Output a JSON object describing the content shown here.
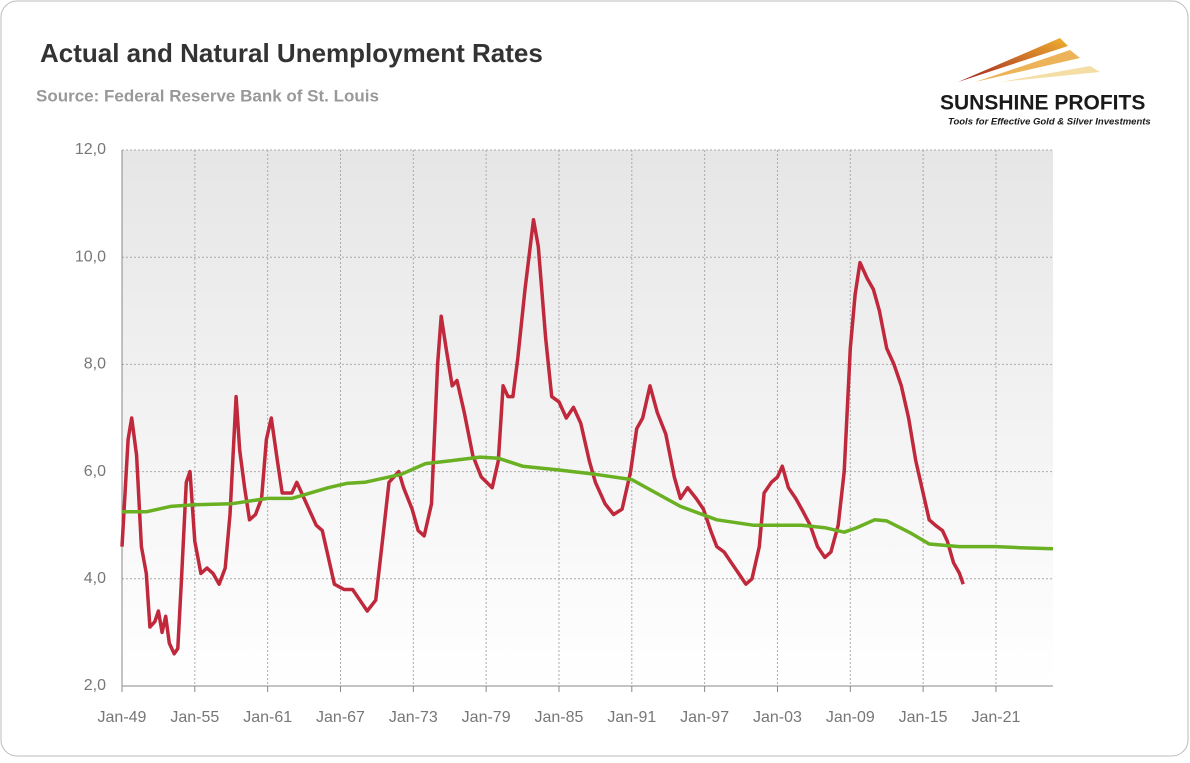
{
  "chart_data": {
    "type": "line",
    "title": "Actual and Natural Unemployment Rates",
    "subtitle": "Source: Federal Reserve Bank of St. Louis",
    "logo": {
      "name": "SUNSHINE PROFITS",
      "tagline": "Tools for Effective Gold & Silver Investments"
    },
    "xlim": [
      1949,
      2025.7
    ],
    "xticks": [
      {
        "value": 1949,
        "label": "Jan-49"
      },
      {
        "value": 1955,
        "label": "Jan-55"
      },
      {
        "value": 1961,
        "label": "Jan-61"
      },
      {
        "value": 1967,
        "label": "Jan-67"
      },
      {
        "value": 1973,
        "label": "Jan-73"
      },
      {
        "value": 1979,
        "label": "Jan-79"
      },
      {
        "value": 1985,
        "label": "Jan-85"
      },
      {
        "value": 1991,
        "label": "Jan-91"
      },
      {
        "value": 1997,
        "label": "Jan-97"
      },
      {
        "value": 2003,
        "label": "Jan-03"
      },
      {
        "value": 2009,
        "label": "Jan-09"
      },
      {
        "value": 2015,
        "label": "Jan-15"
      },
      {
        "value": 2021,
        "label": "Jan-21"
      }
    ],
    "ylim": [
      2,
      12
    ],
    "yticks": [
      {
        "value": 2,
        "label": "2,0"
      },
      {
        "value": 4,
        "label": "4,0"
      },
      {
        "value": 6,
        "label": "6,0"
      },
      {
        "value": 8,
        "label": "8,0"
      },
      {
        "value": 10,
        "label": "10,0"
      },
      {
        "value": 12,
        "label": "12,0"
      }
    ],
    "grid": true,
    "series": [
      {
        "color": "#c0283c",
        "x": [
          1949.0,
          1949.5,
          1949.8,
          1950.2,
          1950.6,
          1951.0,
          1951.3,
          1951.7,
          1952.0,
          1952.3,
          1952.6,
          1952.9,
          1953.3,
          1953.6,
          1953.9,
          1954.3,
          1954.6,
          1955.0,
          1955.5,
          1956.0,
          1956.5,
          1957.0,
          1957.5,
          1957.9,
          1958.4,
          1958.7,
          1959.1,
          1959.5,
          1960.0,
          1960.5,
          1960.9,
          1961.3,
          1961.8,
          1962.2,
          1963.0,
          1963.4,
          1964.0,
          1965.0,
          1965.5,
          1966.5,
          1967.3,
          1968.0,
          1968.6,
          1969.2,
          1969.9,
          1970.5,
          1971.0,
          1971.8,
          1972.2,
          1972.9,
          1973.4,
          1973.9,
          1974.5,
          1975.0,
          1975.3,
          1975.7,
          1976.2,
          1976.6,
          1977.2,
          1977.9,
          1978.6,
          1979.5,
          1980.0,
          1980.4,
          1980.8,
          1981.2,
          1981.6,
          1982.2,
          1982.9,
          1983.3,
          1983.9,
          1984.4,
          1985.0,
          1985.6,
          1986.2,
          1986.8,
          1987.5,
          1988.0,
          1988.8,
          1989.5,
          1990.2,
          1990.9,
          1991.4,
          1991.9,
          1992.5,
          1993.1,
          1993.8,
          1994.5,
          1995.0,
          1995.6,
          1996.3,
          1996.9,
          1997.5,
          1998.0,
          1998.6,
          1999.2,
          1999.8,
          2000.4,
          2000.9,
          2001.5,
          2001.9,
          2002.5,
          2003.0,
          2003.4,
          2003.9,
          2004.5,
          2005.0,
          2005.7,
          2006.3,
          2006.9,
          2007.4,
          2008.0,
          2008.5,
          2009.0,
          2009.4,
          2009.8,
          2010.4,
          2010.9,
          2011.4,
          2012.0,
          2012.6,
          2013.2,
          2013.8,
          2014.4,
          2014.9,
          2015.5,
          2016.0,
          2016.6,
          2017.0,
          2017.5,
          2018.0,
          2018.3
        ],
        "values": [
          4.6,
          6.6,
          7.0,
          6.3,
          4.6,
          4.1,
          3.1,
          3.2,
          3.4,
          3.0,
          3.3,
          2.8,
          2.6,
          2.7,
          4.0,
          5.8,
          6.0,
          4.7,
          4.1,
          4.2,
          4.1,
          3.9,
          4.2,
          5.2,
          7.4,
          6.4,
          5.7,
          5.1,
          5.2,
          5.5,
          6.6,
          7.0,
          6.2,
          5.6,
          5.6,
          5.8,
          5.5,
          5.0,
          4.9,
          3.9,
          3.8,
          3.8,
          3.6,
          3.4,
          3.6,
          4.8,
          5.8,
          6.0,
          5.7,
          5.3,
          4.9,
          4.8,
          5.4,
          8.0,
          8.9,
          8.3,
          7.6,
          7.7,
          7.1,
          6.3,
          5.9,
          5.7,
          6.2,
          7.6,
          7.4,
          7.4,
          8.1,
          9.4,
          10.7,
          10.2,
          8.5,
          7.4,
          7.3,
          7.0,
          7.2,
          6.9,
          6.2,
          5.8,
          5.4,
          5.2,
          5.3,
          6.0,
          6.8,
          7.0,
          7.6,
          7.1,
          6.7,
          5.9,
          5.5,
          5.7,
          5.5,
          5.3,
          4.9,
          4.6,
          4.5,
          4.3,
          4.1,
          3.9,
          4.0,
          4.6,
          5.6,
          5.8,
          5.9,
          6.1,
          5.7,
          5.5,
          5.3,
          5.0,
          4.6,
          4.4,
          4.5,
          5.0,
          6.0,
          8.3,
          9.3,
          9.9,
          9.6,
          9.4,
          9.0,
          8.3,
          8.0,
          7.6,
          7.0,
          6.2,
          5.7,
          5.1,
          5.0,
          4.9,
          4.7,
          4.3,
          4.1,
          3.9
        ]
      },
      {
        "color": "#6ab023",
        "x": [
          1949,
          1951,
          1953,
          1955,
          1958,
          1961,
          1963,
          1966,
          1967.5,
          1969,
          1972,
          1974,
          1976,
          1978.5,
          1980,
          1982,
          1985,
          1988,
          1991,
          1993,
          1995,
          1998,
          2001,
          2005,
          2007,
          2008.5,
          2009.5,
          2011,
          2012,
          2014,
          2015.5,
          2018,
          2021,
          2023,
          2025.7
        ],
        "values": [
          5.25,
          5.25,
          5.35,
          5.38,
          5.4,
          5.5,
          5.5,
          5.7,
          5.78,
          5.8,
          5.95,
          6.15,
          6.2,
          6.27,
          6.25,
          6.1,
          6.03,
          5.95,
          5.85,
          5.6,
          5.35,
          5.1,
          5.0,
          5.0,
          4.95,
          4.87,
          4.95,
          5.1,
          5.08,
          4.85,
          4.65,
          4.6,
          4.6,
          4.58,
          4.56
        ]
      }
    ]
  }
}
